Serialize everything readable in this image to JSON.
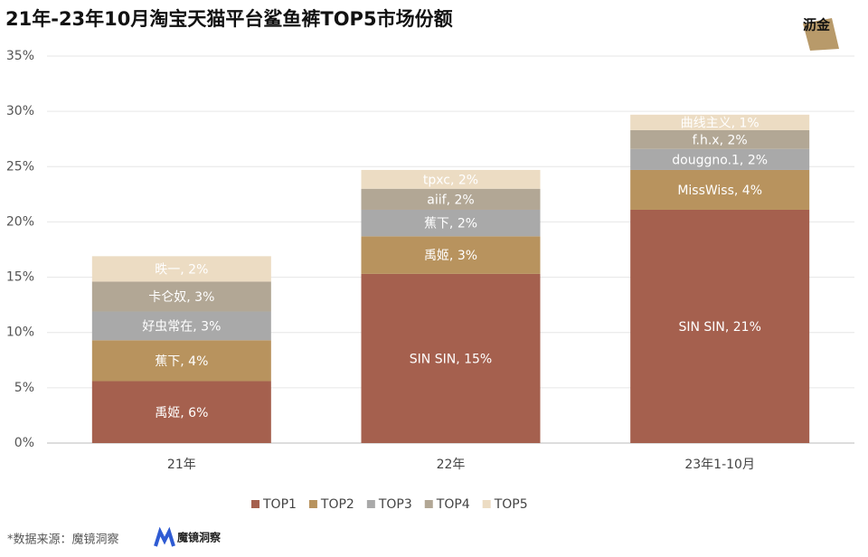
{
  "chart_data": {
    "type": "stacked_bar",
    "title": "21年-23年10月淘宝天猫平台鲨鱼裤TOP5市场份额",
    "categories": [
      "21年",
      "22年",
      "23年1-10月"
    ],
    "series": [
      {
        "name": "TOP1",
        "color": "#a5604e",
        "values": [
          5.6,
          15.3,
          21.1
        ],
        "value_labels": [
          "禹姬, 6%",
          "SIN SIN, 15%",
          "SIN SIN, 21%"
        ]
      },
      {
        "name": "TOP2",
        "color": "#b8935e",
        "values": [
          3.7,
          3.4,
          3.6
        ],
        "value_labels": [
          "蕉下, 4%",
          "禹姬, 3%",
          "MissWiss, 4%"
        ]
      },
      {
        "name": "TOP3",
        "color": "#a9a9a9",
        "values": [
          2.6,
          2.4,
          1.9
        ],
        "value_labels": [
          "好虫常在, 3%",
          "蕉下, 2%",
          "douggno.1, 2%"
        ]
      },
      {
        "name": "TOP4",
        "color": "#b2a795",
        "values": [
          2.7,
          1.9,
          1.7
        ],
        "value_labels": [
          "卡仑奴, 3%",
          "aiif, 2%",
          "f.h.x, 2%"
        ]
      },
      {
        "name": "TOP5",
        "color": "#ecdcc3",
        "values": [
          2.3,
          1.7,
          1.4
        ],
        "value_labels": [
          "昳一, 2%",
          "tpxc, 2%",
          "曲线主义, 1%"
        ]
      }
    ],
    "ylim": [
      0,
      35
    ],
    "yticks": [
      {
        "value": 0,
        "label": "0%"
      },
      {
        "value": 5,
        "label": "5%"
      },
      {
        "value": 10,
        "label": "10%"
      },
      {
        "value": 15,
        "label": "15%"
      },
      {
        "value": 20,
        "label": "20%"
      },
      {
        "value": 25,
        "label": "25%"
      },
      {
        "value": 30,
        "label": "30%"
      },
      {
        "value": 35,
        "label": "35%"
      }
    ],
    "grid": true,
    "legend": "bottom"
  },
  "source": "*数据来源：魔镜洞察",
  "logo": {
    "brand": "魔镜洞察",
    "corner": "沥金"
  }
}
